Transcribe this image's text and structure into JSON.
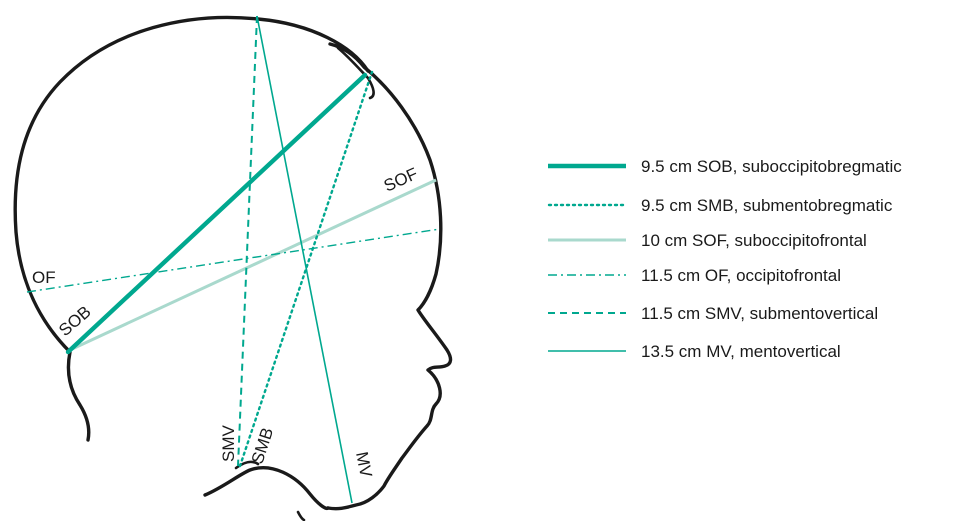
{
  "colors": {
    "teal": "#00a88f",
    "teal_light": "#a9d9cd",
    "outline": "#1a1a1a"
  },
  "diagram_labels": {
    "of": "OF",
    "sob": "SOB",
    "sof": "SOF",
    "smv": "SMV",
    "smb": "SMB",
    "mv": "MV"
  },
  "legend": [
    {
      "id": "sob",
      "text": "9.5 cm SOB, suboccipitobregmatic",
      "style": "thick-solid"
    },
    {
      "id": "smb",
      "text": "9.5 cm SMB, submentobregmatic",
      "style": "dotted"
    },
    {
      "id": "sof",
      "text": "10 cm SOF, suboccipitofrontal",
      "style": "light-solid"
    },
    {
      "id": "of",
      "text": "11.5 cm OF, occipitofrontal",
      "style": "dash-dot"
    },
    {
      "id": "smv",
      "text": "11.5 cm SMV, submentovertical",
      "style": "dashed"
    },
    {
      "id": "mv",
      "text": "13.5 cm MV, mentovertical",
      "style": "thin-solid"
    }
  ]
}
